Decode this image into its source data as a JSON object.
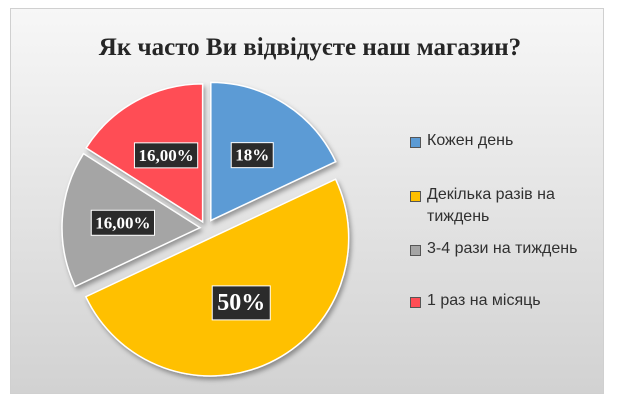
{
  "chart_data": {
    "type": "pie",
    "title": "Як часто Ви відвідуєте наш магазин?",
    "slices": [
      {
        "label": "Кожен день",
        "value": 18,
        "display": "18%",
        "color": "#5b9bd5"
      },
      {
        "label": "Декілька разів на тиждень",
        "value": 50,
        "display": "50%",
        "color": "#ffc000"
      },
      {
        "label": "3-4 рази на тиждень",
        "value": 16,
        "display": "16,00%",
        "color": "#a5a5a5"
      },
      {
        "label": "1 раз на місяць",
        "value": 16,
        "display": "16,00%",
        "color": "#ff4d55"
      }
    ],
    "start_angle_deg": 0,
    "direction": "clockwise",
    "exploded": true,
    "legend_position": "right"
  }
}
